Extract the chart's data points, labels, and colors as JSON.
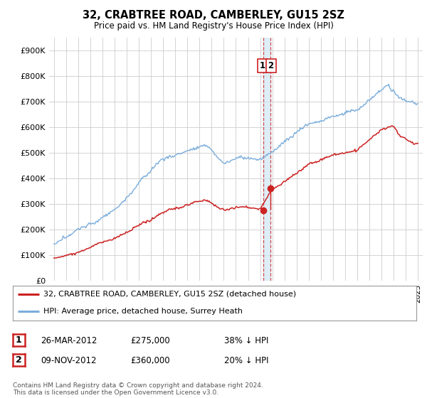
{
  "title": "32, CRABTREE ROAD, CAMBERLEY, GU15 2SZ",
  "subtitle": "Price paid vs. HM Land Registry's House Price Index (HPI)",
  "ylim": [
    0,
    950000
  ],
  "yticks": [
    0,
    100000,
    200000,
    300000,
    400000,
    500000,
    600000,
    700000,
    800000,
    900000
  ],
  "ytick_labels": [
    "£0",
    "£100K",
    "£200K",
    "£300K",
    "£400K",
    "£500K",
    "£600K",
    "£700K",
    "£800K",
    "£900K"
  ],
  "hpi_color": "#7aaddc",
  "price_color": "#cc2222",
  "vline_color": "#cc2222",
  "shade_color": "#d0e8f5",
  "transaction1_year": 2012.23,
  "transaction2_year": 2012.86,
  "transaction1_price": 275000,
  "transaction2_price": 360000,
  "transaction1_date": "26-MAR-2012",
  "transaction2_date": "09-NOV-2012",
  "transaction1_pct": "38% ↓ HPI",
  "transaction2_pct": "20% ↓ HPI",
  "legend_label1": "32, CRABTREE ROAD, CAMBERLEY, GU15 2SZ (detached house)",
  "legend_label2": "HPI: Average price, detached house, Surrey Heath",
  "footer": "Contains HM Land Registry data © Crown copyright and database right 2024.\nThis data is licensed under the Open Government Licence v3.0.",
  "background_color": "#ffffff",
  "grid_color": "#cccccc",
  "xmin": 1995,
  "xmax": 2025
}
